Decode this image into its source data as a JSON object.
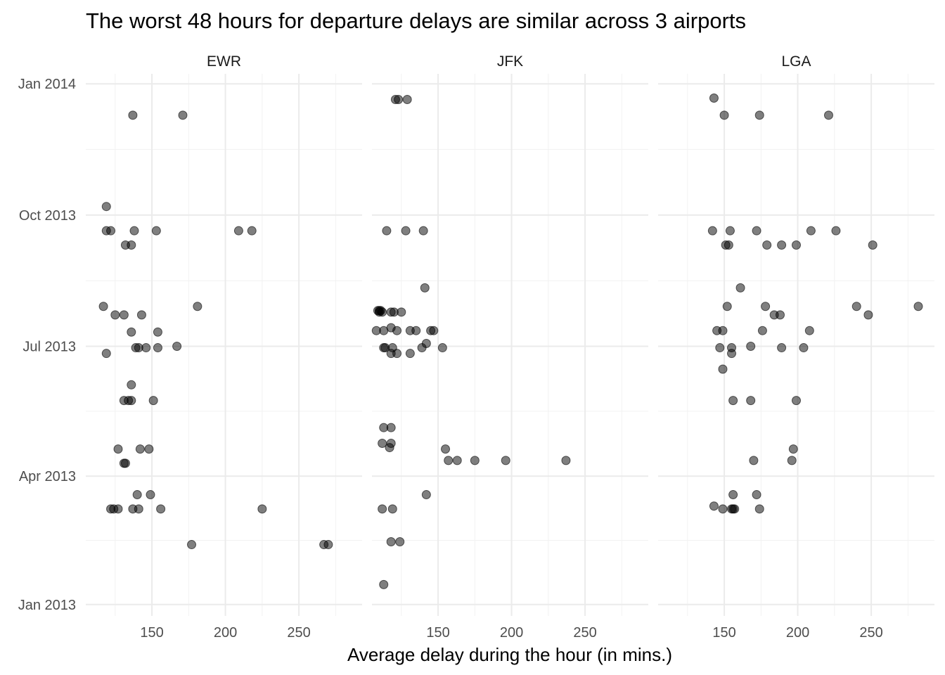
{
  "chart_data": {
    "type": "scatter",
    "title": "The worst 48 hours for departure delays are similar across 3 airports",
    "xlabel": "Average delay during the hour (in mins.)",
    "ylabel": "",
    "x_ticks": [
      150,
      200,
      250
    ],
    "xlim": [
      105,
      293
    ],
    "y_ticks": [
      {
        "label": "Jan 2013",
        "date": "2013-01-01"
      },
      {
        "label": "Apr 2013",
        "date": "2013-04-01"
      },
      {
        "label": "Jul 2013",
        "date": "2013-07-01"
      },
      {
        "label": "Oct 2013",
        "date": "2013-10-01"
      },
      {
        "label": "Jan 2014",
        "date": "2014-01-01"
      }
    ],
    "ylim": [
      "2012-12-24",
      "2014-01-08"
    ],
    "grid": true,
    "point_color": "#000000",
    "panels": [
      {
        "name": "EWR",
        "points": [
          {
            "x": 137,
            "date": "2013-12-10"
          },
          {
            "x": 171,
            "date": "2013-12-10"
          },
          {
            "x": 119,
            "date": "2013-10-07"
          },
          {
            "x": 119,
            "date": "2013-09-20"
          },
          {
            "x": 122,
            "date": "2013-09-20"
          },
          {
            "x": 138,
            "date": "2013-09-20"
          },
          {
            "x": 153,
            "date": "2013-09-20"
          },
          {
            "x": 209,
            "date": "2013-09-20"
          },
          {
            "x": 218,
            "date": "2013-09-20"
          },
          {
            "x": 132,
            "date": "2013-09-10"
          },
          {
            "x": 136,
            "date": "2013-09-10"
          },
          {
            "x": 117,
            "date": "2013-07-29"
          },
          {
            "x": 181,
            "date": "2013-07-29"
          },
          {
            "x": 125,
            "date": "2013-07-23"
          },
          {
            "x": 131,
            "date": "2013-07-23"
          },
          {
            "x": 143,
            "date": "2013-07-23"
          },
          {
            "x": 136,
            "date": "2013-07-11"
          },
          {
            "x": 154,
            "date": "2013-07-11"
          },
          {
            "x": 167,
            "date": "2013-07-01"
          },
          {
            "x": 139,
            "date": "2013-06-30"
          },
          {
            "x": 141,
            "date": "2013-06-30"
          },
          {
            "x": 146,
            "date": "2013-06-30"
          },
          {
            "x": 154,
            "date": "2013-06-30"
          },
          {
            "x": 119,
            "date": "2013-06-26"
          },
          {
            "x": 136,
            "date": "2013-06-04"
          },
          {
            "x": 131,
            "date": "2013-05-24"
          },
          {
            "x": 134,
            "date": "2013-05-24"
          },
          {
            "x": 136,
            "date": "2013-05-24"
          },
          {
            "x": 151,
            "date": "2013-05-24"
          },
          {
            "x": 127,
            "date": "2013-04-20"
          },
          {
            "x": 142,
            "date": "2013-04-20"
          },
          {
            "x": 148,
            "date": "2013-04-20"
          },
          {
            "x": 131,
            "date": "2013-04-10"
          },
          {
            "x": 132,
            "date": "2013-04-10"
          },
          {
            "x": 140,
            "date": "2013-03-19"
          },
          {
            "x": 149,
            "date": "2013-03-19"
          },
          {
            "x": 122,
            "date": "2013-03-09"
          },
          {
            "x": 124,
            "date": "2013-03-09"
          },
          {
            "x": 127,
            "date": "2013-03-09"
          },
          {
            "x": 137,
            "date": "2013-03-09"
          },
          {
            "x": 141,
            "date": "2013-03-09"
          },
          {
            "x": 156,
            "date": "2013-03-09"
          },
          {
            "x": 225,
            "date": "2013-03-09"
          },
          {
            "x": 177,
            "date": "2013-02-12"
          },
          {
            "x": 267,
            "date": "2013-02-12"
          },
          {
            "x": 270,
            "date": "2013-02-12"
          }
        ]
      },
      {
        "name": "JFK",
        "points": [
          {
            "x": 121,
            "date": "2013-12-21"
          },
          {
            "x": 123,
            "date": "2013-12-21"
          },
          {
            "x": 129,
            "date": "2013-12-21"
          },
          {
            "x": 115,
            "date": "2013-09-20"
          },
          {
            "x": 128,
            "date": "2013-09-20"
          },
          {
            "x": 140,
            "date": "2013-09-20"
          },
          {
            "x": 141,
            "date": "2013-08-11"
          },
          {
            "x": 109,
            "date": "2013-07-26"
          },
          {
            "x": 110,
            "date": "2013-07-26"
          },
          {
            "x": 111,
            "date": "2013-07-26"
          },
          {
            "x": 110,
            "date": "2013-07-25"
          },
          {
            "x": 112,
            "date": "2013-07-25"
          },
          {
            "x": 118,
            "date": "2013-07-25"
          },
          {
            "x": 120,
            "date": "2013-07-25"
          },
          {
            "x": 125,
            "date": "2013-07-25"
          },
          {
            "x": 118,
            "date": "2013-07-14"
          },
          {
            "x": 108,
            "date": "2013-07-12"
          },
          {
            "x": 113,
            "date": "2013-07-12"
          },
          {
            "x": 122,
            "date": "2013-07-12"
          },
          {
            "x": 131,
            "date": "2013-07-12"
          },
          {
            "x": 135,
            "date": "2013-07-12"
          },
          {
            "x": 145,
            "date": "2013-07-12"
          },
          {
            "x": 147,
            "date": "2013-07-12"
          },
          {
            "x": 142,
            "date": "2013-07-03"
          },
          {
            "x": 113,
            "date": "2013-06-30"
          },
          {
            "x": 114,
            "date": "2013-06-30"
          },
          {
            "x": 119,
            "date": "2013-06-30"
          },
          {
            "x": 139,
            "date": "2013-06-30"
          },
          {
            "x": 153,
            "date": "2013-06-30"
          },
          {
            "x": 118,
            "date": "2013-06-26"
          },
          {
            "x": 122,
            "date": "2013-06-26"
          },
          {
            "x": 131,
            "date": "2013-06-26"
          },
          {
            "x": 113,
            "date": "2013-05-05"
          },
          {
            "x": 118,
            "date": "2013-05-05"
          },
          {
            "x": 112,
            "date": "2013-04-24"
          },
          {
            "x": 118,
            "date": "2013-04-24"
          },
          {
            "x": 117,
            "date": "2013-04-21"
          },
          {
            "x": 155,
            "date": "2013-04-20"
          },
          {
            "x": 157,
            "date": "2013-04-12"
          },
          {
            "x": 163,
            "date": "2013-04-12"
          },
          {
            "x": 175,
            "date": "2013-04-12"
          },
          {
            "x": 196,
            "date": "2013-04-12"
          },
          {
            "x": 237,
            "date": "2013-04-12"
          },
          {
            "x": 142,
            "date": "2013-03-19"
          },
          {
            "x": 112,
            "date": "2013-03-09"
          },
          {
            "x": 119,
            "date": "2013-03-09"
          },
          {
            "x": 118,
            "date": "2013-02-14"
          },
          {
            "x": 124,
            "date": "2013-02-14"
          },
          {
            "x": 113,
            "date": "2013-01-15"
          }
        ]
      },
      {
        "name": "LGA",
        "points": [
          {
            "x": 143,
            "date": "2013-12-22"
          },
          {
            "x": 150,
            "date": "2013-12-10"
          },
          {
            "x": 174,
            "date": "2013-12-10"
          },
          {
            "x": 221,
            "date": "2013-12-10"
          },
          {
            "x": 142,
            "date": "2013-09-20"
          },
          {
            "x": 154,
            "date": "2013-09-20"
          },
          {
            "x": 172,
            "date": "2013-09-20"
          },
          {
            "x": 209,
            "date": "2013-09-20"
          },
          {
            "x": 226,
            "date": "2013-09-20"
          },
          {
            "x": 151,
            "date": "2013-09-10"
          },
          {
            "x": 153,
            "date": "2013-09-10"
          },
          {
            "x": 179,
            "date": "2013-09-10"
          },
          {
            "x": 189,
            "date": "2013-09-10"
          },
          {
            "x": 199,
            "date": "2013-09-10"
          },
          {
            "x": 251,
            "date": "2013-09-10"
          },
          {
            "x": 161,
            "date": "2013-08-11"
          },
          {
            "x": 152,
            "date": "2013-07-29"
          },
          {
            "x": 178,
            "date": "2013-07-29"
          },
          {
            "x": 240,
            "date": "2013-07-29"
          },
          {
            "x": 282,
            "date": "2013-07-29"
          },
          {
            "x": 184,
            "date": "2013-07-23"
          },
          {
            "x": 188,
            "date": "2013-07-23"
          },
          {
            "x": 248,
            "date": "2013-07-23"
          },
          {
            "x": 145,
            "date": "2013-07-12"
          },
          {
            "x": 149,
            "date": "2013-07-12"
          },
          {
            "x": 176,
            "date": "2013-07-12"
          },
          {
            "x": 208,
            "date": "2013-07-12"
          },
          {
            "x": 168,
            "date": "2013-07-01"
          },
          {
            "x": 147,
            "date": "2013-06-30"
          },
          {
            "x": 155,
            "date": "2013-06-30"
          },
          {
            "x": 189,
            "date": "2013-06-30"
          },
          {
            "x": 204,
            "date": "2013-06-30"
          },
          {
            "x": 155,
            "date": "2013-06-26"
          },
          {
            "x": 149,
            "date": "2013-06-15"
          },
          {
            "x": 156,
            "date": "2013-05-24"
          },
          {
            "x": 168,
            "date": "2013-05-24"
          },
          {
            "x": 199,
            "date": "2013-05-24"
          },
          {
            "x": 197,
            "date": "2013-04-20"
          },
          {
            "x": 196,
            "date": "2013-04-12"
          },
          {
            "x": 170,
            "date": "2013-04-12"
          },
          {
            "x": 156,
            "date": "2013-03-19"
          },
          {
            "x": 172,
            "date": "2013-03-19"
          },
          {
            "x": 143,
            "date": "2013-03-11"
          },
          {
            "x": 149,
            "date": "2013-03-09"
          },
          {
            "x": 155,
            "date": "2013-03-09"
          },
          {
            "x": 156,
            "date": "2013-03-09"
          },
          {
            "x": 157,
            "date": "2013-03-09"
          },
          {
            "x": 174,
            "date": "2013-03-09"
          }
        ]
      }
    ]
  }
}
